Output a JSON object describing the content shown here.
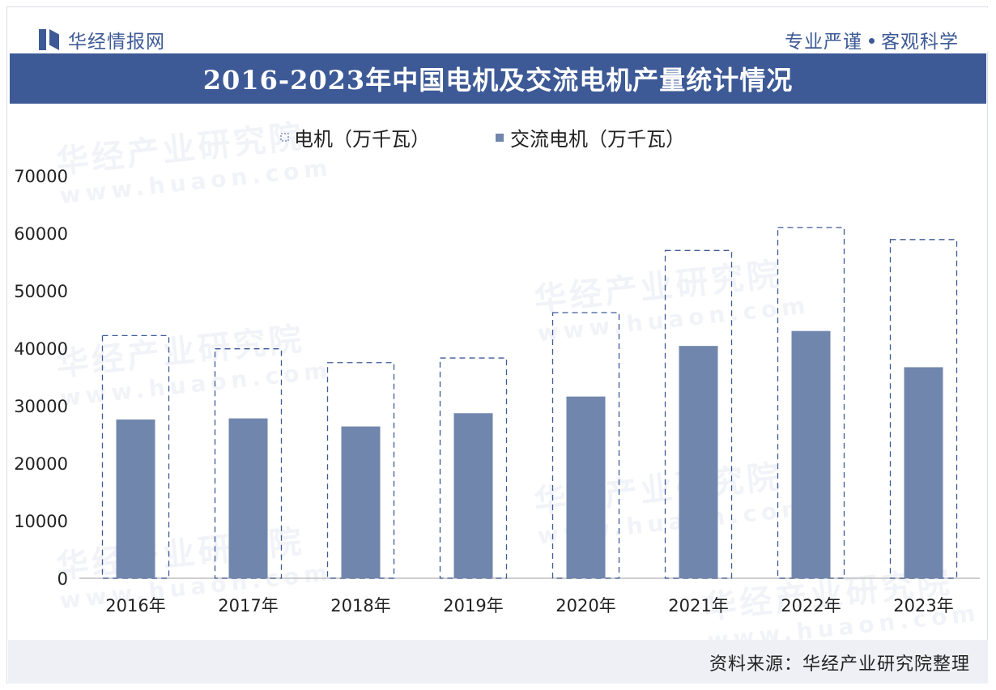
{
  "header": {
    "brand": "华经情报网",
    "slogan_left": "专业严谨",
    "slogan_right": "客观科学"
  },
  "title": "2016-2023年中国电机及交流电机产量统计情况",
  "footer": {
    "source": "资料来源：华经产业研究院整理"
  },
  "watermark": {
    "text": "华经产业研究院",
    "url": "www.huaon.com"
  },
  "colors": {
    "brand": "#3d5a96",
    "bar": "#7186ad",
    "dashed": "#3d5a96"
  },
  "chart_data": {
    "type": "bar",
    "categories": [
      "2016年",
      "2017年",
      "2018年",
      "2019年",
      "2020年",
      "2021年",
      "2022年",
      "2023年"
    ],
    "series": [
      {
        "name": "电机（万千瓦）",
        "style": "dashed-outline",
        "values": [
          42200,
          39900,
          37500,
          38300,
          46200,
          57000,
          61000,
          58900
        ]
      },
      {
        "name": "交流电机（万千瓦）",
        "style": "filled",
        "values": [
          27600,
          27800,
          26400,
          28700,
          31600,
          40400,
          43000,
          36700
        ]
      }
    ],
    "ylim": [
      0,
      70000
    ],
    "yticks": [
      "0",
      "10000",
      "20000",
      "30000",
      "40000",
      "50000",
      "60000",
      "70000"
    ],
    "legend_position": "top-center",
    "grid": false
  }
}
